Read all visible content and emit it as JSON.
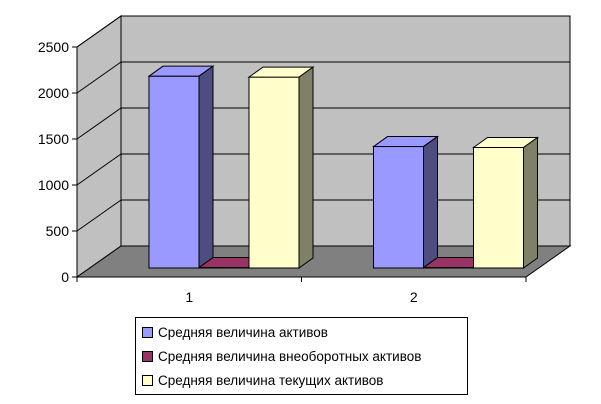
{
  "chart_data": {
    "type": "bar",
    "categories": [
      "1",
      "2"
    ],
    "series": [
      {
        "name": "Средняя величина активов",
        "values": [
          2085,
          1320
        ],
        "color": "#9999ff"
      },
      {
        "name": "Средняя величина внеоборотных активов",
        "values": [
          5,
          5
        ],
        "color": "#993366"
      },
      {
        "name": "Средняя величина текущих активов",
        "values": [
          2075,
          1310
        ],
        "color": "#ffffcc"
      }
    ],
    "yticks": [
      "0",
      "500",
      "1000",
      "1500",
      "2000",
      "2500"
    ],
    "ylim": [
      0,
      2500
    ],
    "grid": true,
    "legend_position": "bottom",
    "wall_color": "#c0c0c0",
    "floor_color": "#808080"
  }
}
